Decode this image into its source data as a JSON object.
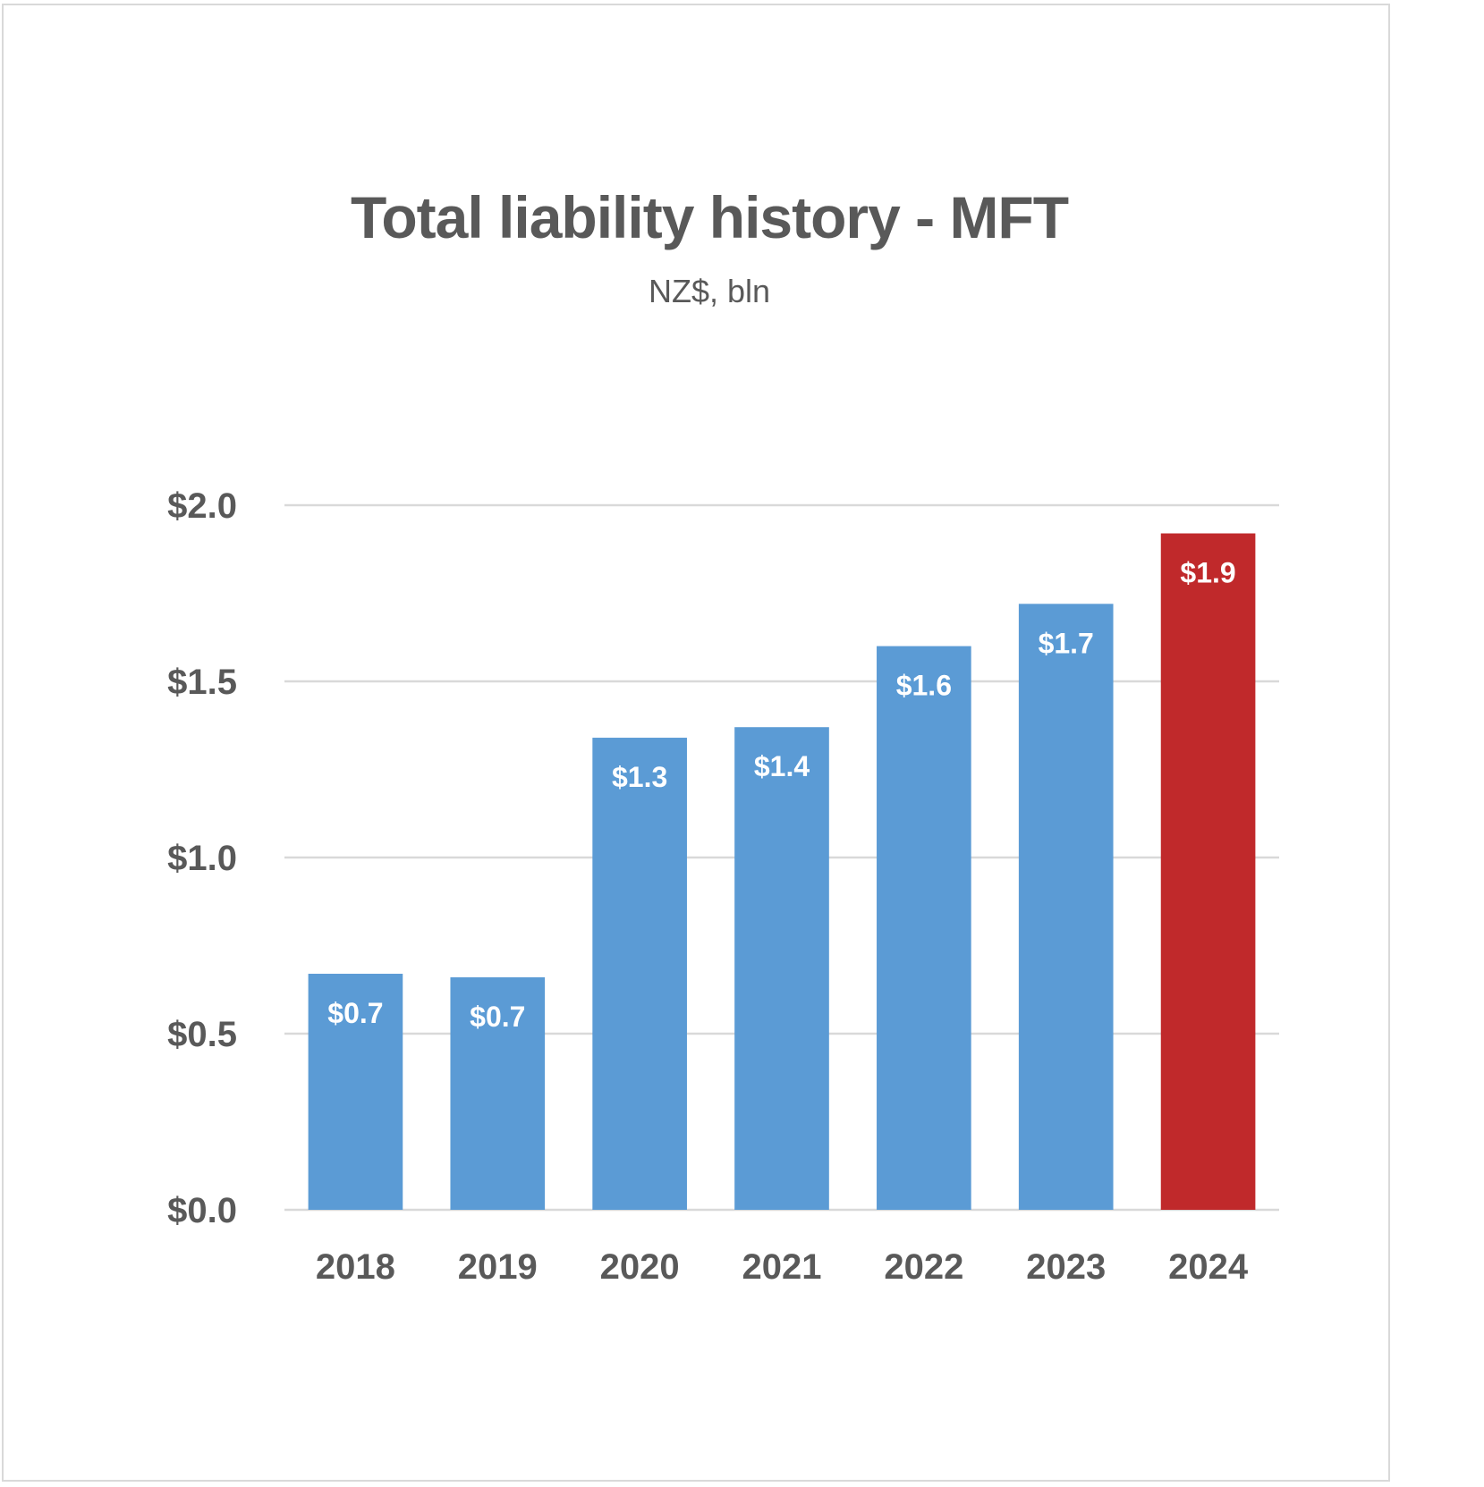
{
  "chart_data": {
    "type": "bar",
    "title": "Total liability history - MFT",
    "subtitle": "NZ$, bln",
    "xlabel": "",
    "ylabel": "",
    "categories": [
      "2018",
      "2019",
      "2020",
      "2021",
      "2022",
      "2023",
      "2024"
    ],
    "values": [
      0.67,
      0.66,
      1.34,
      1.37,
      1.6,
      1.72,
      1.92
    ],
    "data_labels": [
      "$0.7",
      "$0.7",
      "$1.3",
      "$1.4",
      "$1.6",
      "$1.7",
      "$1.9"
    ],
    "ylim": [
      0,
      2.0
    ],
    "yticks": [
      0,
      0.5,
      1.0,
      1.5,
      2.0
    ],
    "ytick_labels": [
      "$0.0",
      "$0.5",
      "$1.0",
      "$1.5",
      "$2.0"
    ],
    "grid": true,
    "legend": "none",
    "colors": {
      "default_bar": "#5b9bd5",
      "highlight_bar": "#c0292b",
      "gridline": "#d9d9d9",
      "text": "#595959",
      "data_label": "#ffffff"
    },
    "highlight_index": 6
  }
}
